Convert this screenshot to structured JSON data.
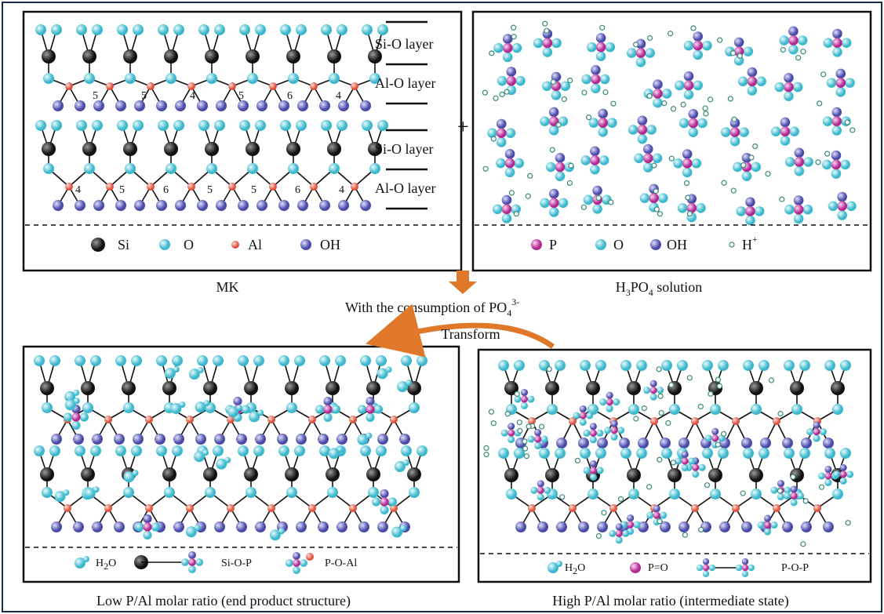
{
  "mk": {
    "layers": [
      "Si-O layer",
      "Al-O layer",
      "Si-O layer",
      "Al-O layer"
    ],
    "ring_numbers_top": [
      "5",
      "5",
      "4",
      "5",
      "6",
      "4"
    ],
    "ring_numbers_bottom": [
      "4",
      "5",
      "6",
      "5",
      "5",
      "6",
      "4"
    ],
    "legend": [
      "Si",
      "O",
      "Al",
      "OH"
    ],
    "caption": "MK"
  },
  "plus": "+",
  "solution": {
    "legend": [
      "P",
      "O",
      "OH"
    ],
    "h_plus": [
      "H",
      "+"
    ],
    "caption": [
      "H",
      "3",
      "PO",
      "4",
      " solution"
    ]
  },
  "arrow_text": [
    "With the consumption of PO",
    "4",
    "3-"
  ],
  "transform": "Transform",
  "low": {
    "water": [
      "H",
      "2",
      "O"
    ],
    "si_o_p": "Si-O-P",
    "p_o_al": "P-O-Al",
    "caption": "Low P/Al molar ratio (end product structure)"
  },
  "high": {
    "water": [
      "H",
      "2",
      "O"
    ],
    "p_eq_o": "P=O",
    "p_o_p": "P-O-P",
    "caption": "High P/Al molar ratio (intermediate state)"
  }
}
